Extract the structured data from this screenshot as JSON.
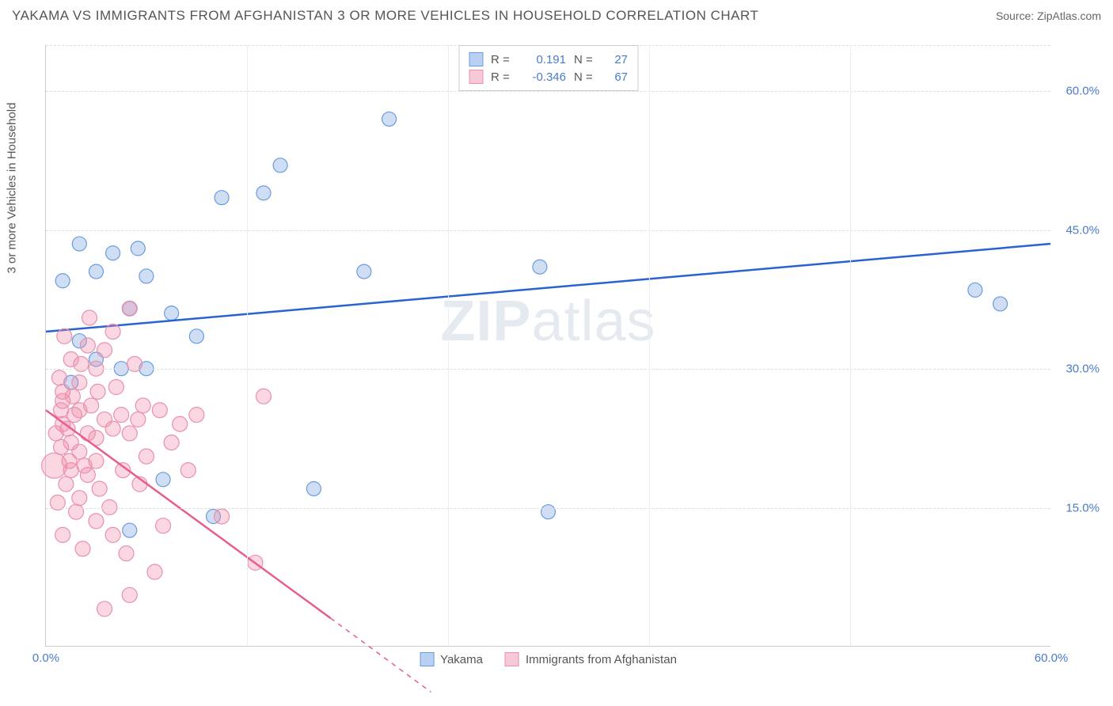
{
  "title": "YAKAMA VS IMMIGRANTS FROM AFGHANISTAN 3 OR MORE VEHICLES IN HOUSEHOLD CORRELATION CHART",
  "source": "Source: ZipAtlas.com",
  "watermark": {
    "strong": "ZIP",
    "light": "atlas"
  },
  "chart": {
    "type": "scatter",
    "y_axis_label": "3 or more Vehicles in Household",
    "xlim": [
      0,
      60
    ],
    "ylim": [
      0,
      65
    ],
    "x_ticks": [
      0,
      60
    ],
    "x_tick_labels": [
      "0.0%",
      "60.0%"
    ],
    "y_ticks": [
      15,
      30,
      45,
      60
    ],
    "y_tick_labels": [
      "15.0%",
      "30.0%",
      "45.0%",
      "60.0%"
    ],
    "background_color": "#ffffff",
    "grid_color": "#dddddd",
    "axis_color": "#cccccc",
    "tick_label_color": "#4a7bc8",
    "series": [
      {
        "name": "Yakama",
        "color_fill": "rgba(120, 160, 220, 0.35)",
        "color_stroke": "#6a9be0",
        "swatch_fill": "#b9d0f0",
        "swatch_border": "#6a9be0",
        "r_stat": "0.191",
        "n_stat": "27",
        "marker_r": 9,
        "points": [
          [
            1.0,
            39.5
          ],
          [
            2.0,
            43.5
          ],
          [
            3.0,
            40.5
          ],
          [
            4.0,
            42.5
          ],
          [
            5.5,
            43.0
          ],
          [
            5.0,
            36.5
          ],
          [
            6.0,
            40.0
          ],
          [
            4.5,
            30.0
          ],
          [
            3.0,
            31.0
          ],
          [
            2.0,
            33.0
          ],
          [
            1.5,
            28.5
          ],
          [
            6.0,
            30.0
          ],
          [
            9.0,
            33.5
          ],
          [
            10.5,
            48.5
          ],
          [
            13.0,
            49.0
          ],
          [
            14.0,
            52.0
          ],
          [
            19.0,
            40.5
          ],
          [
            20.5,
            57.0
          ],
          [
            29.5,
            41.0
          ],
          [
            30.0,
            14.5
          ],
          [
            16.0,
            17.0
          ],
          [
            10.0,
            14.0
          ],
          [
            5.0,
            12.5
          ],
          [
            7.0,
            18.0
          ],
          [
            55.5,
            38.5
          ],
          [
            57.0,
            37.0
          ],
          [
            7.5,
            36.0
          ]
        ],
        "trend": {
          "x1": 0,
          "y1": 34.0,
          "x2": 60,
          "y2": 43.5,
          "stroke": "#2a62d4",
          "width": 2.5
        }
      },
      {
        "name": "Immigrants from Afghanistan",
        "color_fill": "rgba(240, 140, 170, 0.35)",
        "color_stroke": "#e890b0",
        "swatch_fill": "#f7c9d8",
        "swatch_border": "#e890b0",
        "r_stat": "-0.346",
        "n_stat": "67",
        "marker_r": 9.5,
        "points": [
          [
            1.0,
            24.0
          ],
          [
            1.5,
            22.0
          ],
          [
            2.0,
            25.5
          ],
          [
            1.0,
            26.5
          ],
          [
            2.5,
            23.0
          ],
          [
            2.0,
            21.0
          ],
          [
            3.0,
            22.5
          ],
          [
            3.5,
            24.5
          ],
          [
            4.0,
            23.5
          ],
          [
            3.0,
            20.0
          ],
          [
            1.5,
            19.0
          ],
          [
            2.5,
            18.5
          ],
          [
            4.5,
            25.0
          ],
          [
            5.0,
            23.0
          ],
          [
            5.5,
            24.5
          ],
          [
            1.0,
            27.5
          ],
          [
            2.0,
            28.5
          ],
          [
            3.0,
            30.0
          ],
          [
            3.5,
            32.0
          ],
          [
            4.0,
            34.0
          ],
          [
            5.0,
            36.5
          ],
          [
            2.5,
            32.5
          ],
          [
            1.5,
            31.0
          ],
          [
            0.8,
            29.0
          ],
          [
            1.2,
            17.5
          ],
          [
            2.0,
            16.0
          ],
          [
            3.0,
            13.5
          ],
          [
            4.0,
            12.0
          ],
          [
            6.5,
            8.0
          ],
          [
            5.0,
            5.5
          ],
          [
            3.5,
            4.0
          ],
          [
            7.0,
            13.0
          ],
          [
            6.0,
            20.5
          ],
          [
            7.5,
            22.0
          ],
          [
            8.0,
            24.0
          ],
          [
            9.0,
            25.0
          ],
          [
            10.5,
            14.0
          ],
          [
            12.5,
            9.0
          ],
          [
            13.0,
            27.0
          ],
          [
            0.5,
            19.5,
            16
          ],
          [
            1.8,
            14.5
          ],
          [
            3.2,
            17.0
          ],
          [
            4.8,
            10.0
          ],
          [
            2.2,
            10.5
          ],
          [
            1.0,
            12.0
          ],
          [
            0.7,
            15.5
          ],
          [
            0.9,
            21.5
          ],
          [
            1.3,
            23.5
          ],
          [
            2.7,
            26.0
          ],
          [
            4.2,
            28.0
          ],
          [
            5.3,
            30.5
          ],
          [
            1.7,
            25.0
          ],
          [
            2.3,
            19.5
          ],
          [
            3.8,
            15.0
          ],
          [
            5.6,
            17.5
          ],
          [
            6.8,
            25.5
          ],
          [
            1.1,
            33.5
          ],
          [
            2.6,
            35.5
          ],
          [
            0.6,
            23.0
          ],
          [
            1.4,
            20.0
          ],
          [
            4.6,
            19.0
          ],
          [
            3.1,
            27.5
          ],
          [
            2.1,
            30.5
          ],
          [
            0.9,
            25.5
          ],
          [
            1.6,
            27.0
          ],
          [
            5.8,
            26.0
          ],
          [
            8.5,
            19.0
          ]
        ],
        "trend": {
          "x1": 0,
          "y1": 25.5,
          "x2": 17,
          "y2": 3.0,
          "dash_x2": 23,
          "dash_y2": -5,
          "stroke": "#e85d8d",
          "width": 2.5
        }
      }
    ]
  },
  "legend_bottom": [
    {
      "label": "Yakama",
      "swatch_fill": "#b9d0f0",
      "swatch_border": "#6a9be0"
    },
    {
      "label": "Immigrants from Afghanistan",
      "swatch_fill": "#f7c9d8",
      "swatch_border": "#e890b0"
    }
  ]
}
